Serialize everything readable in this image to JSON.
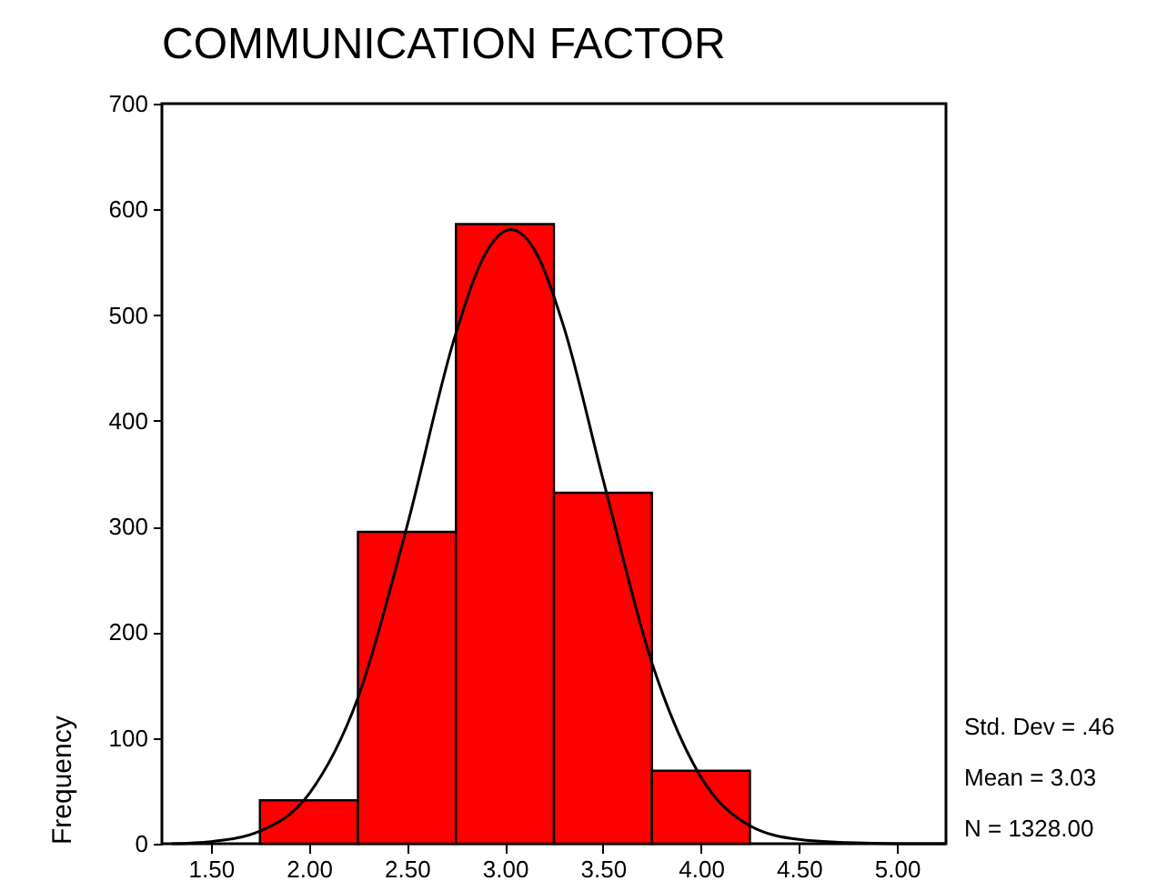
{
  "chart_data": {
    "type": "histogram",
    "title": "COMMUNICATION FACTOR",
    "ylabel": "Frequency",
    "bins": [
      1.75,
      2.25,
      2.75,
      3.25,
      3.75,
      4.25
    ],
    "values": [
      41,
      295,
      586,
      332,
      69
    ],
    "color": "#ff0000",
    "series": [
      {
        "type": "line",
        "color": "#000000",
        "x": [
          1.3,
          1.5,
          1.75,
          2.0,
          2.25,
          2.5,
          2.75,
          2.9,
          3.03,
          3.15,
          3.3,
          3.5,
          3.75,
          4.0,
          4.25,
          4.5,
          4.75,
          5.0,
          5.25
        ],
        "values": [
          0,
          2,
          12,
          47,
          138,
          300,
          483,
          558,
          581,
          562,
          489,
          345,
          171,
          63,
          17,
          4,
          1,
          0,
          0
        ]
      }
    ],
    "xlim": [
      1.25,
      5.25
    ],
    "xticks": [
      {
        "value": 1.5,
        "label": "1.50"
      },
      {
        "value": 2,
        "label": "2.00"
      },
      {
        "value": 2.5,
        "label": "2.50"
      },
      {
        "value": 3,
        "label": "3.00"
      },
      {
        "value": 3.5,
        "label": "3.50"
      },
      {
        "value": 4,
        "label": "4.00"
      },
      {
        "value": 4.5,
        "label": "4.50"
      },
      {
        "value": 5,
        "label": "5.00"
      }
    ],
    "ylim": [
      0,
      700
    ],
    "yticks": [
      0,
      100,
      200,
      300,
      400,
      500,
      600,
      700
    ],
    "annotations": [
      "Std. Dev = .46",
      "Mean = 3.03",
      "N = 1328.00"
    ]
  }
}
